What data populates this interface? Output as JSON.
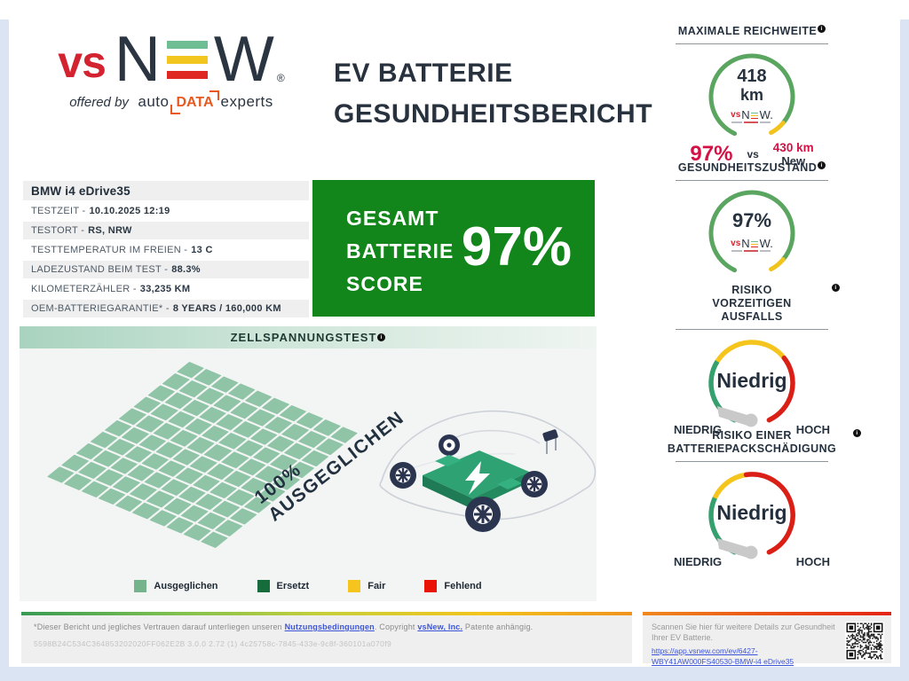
{
  "report": {
    "logo": {
      "vs": "vs",
      "n": "N",
      "w": "W",
      "reg": "®",
      "offered_by": "offered by",
      "auto": "auto",
      "data_word": "DATA",
      "experts": "experts",
      "mini_vs": "vs",
      "mini_n": "N",
      "mini_w": "W."
    },
    "title_line1": "EV BATTERIE",
    "title_line2": "GESUNDHEITSBERICHT"
  },
  "vehicle": {
    "name": "BMW i4 eDrive35",
    "rows": [
      {
        "label": "TESTZEIT -",
        "value": "10.10.2025 12:19"
      },
      {
        "label": "TESTORT -",
        "value": "RS, NRW"
      },
      {
        "label": "TESTTEMPERATUR IM FREIEN -",
        "value": "13 C"
      },
      {
        "label": "LADEZUSTAND BEIM TEST -",
        "value": "88.3%"
      },
      {
        "label": "KILOMETERZÄHLER -",
        "value": "33,235 KM"
      },
      {
        "label": "OEM-BATTERIEGARANTIE* -",
        "value": "8 YEARS / 160,000 KM"
      }
    ]
  },
  "score": {
    "line1": "GESAMT",
    "line2": "BATTERIE",
    "line3": "SCORE",
    "value": "97%"
  },
  "gauges": {
    "range": {
      "title": "MAXIMALE REICHWEITE",
      "value": "418",
      "unit": "km",
      "percent": "97%",
      "vs_label": "vs",
      "new_value": "430 km",
      "new_label": "New"
    },
    "health": {
      "title": "GESUNDHEITSZUSTAND",
      "value": "97%"
    },
    "failure_risk": {
      "title_line1": "RISIKO",
      "title_line2": "VORZEITIGEN",
      "title_line3": "AUSFALLS",
      "value": "Niedrig",
      "low_label": "NIEDRIG",
      "high_label": "HOCH"
    },
    "damage_risk": {
      "title_line1": "RISIKO EINER",
      "title_line2": "BATTERIEPACKSCHÄDIGUNG",
      "value": "Niedrig",
      "low_label": "NIEDRIG",
      "high_label": "HOCH"
    }
  },
  "cell_test": {
    "title": "ZELLSPANNUNGSTEST",
    "overlay_line1": "100%",
    "overlay_line2": "AUSGEGLICHEN",
    "cell_color": "#8fc4a7",
    "grid": {
      "rows": 10,
      "cols": 10
    },
    "legend": [
      {
        "label": "Ausgeglichen",
        "color": "#74b38c"
      },
      {
        "label": "Ersetzt",
        "color": "#166c3a"
      },
      {
        "label": "Fair",
        "color": "#f6c51d"
      },
      {
        "label": "Fehlend",
        "color": "#ea1107"
      }
    ]
  },
  "footer": {
    "disclaimer_prefix": "*Dieser Bericht und jegliches Vertrauen darauf unterliegen unseren",
    "terms_link": "Nutzungsbedingungen",
    "disclaimer_mid": ". Copyright",
    "company_link": "vsNew, Inc.",
    "disclaimer_suffix": "Patente anhängig.",
    "serial": "5598B24C534C364853202020FF062E2B 3.0.0 2.72 (1) 4c25758c-7845-433e-9c8f-360101a070f9",
    "scan_text": "Scannen Sie hier für weitere Details zur Gesundheit Ihrer EV Batterie.",
    "scan_link": "https://app.vsnew.com/ev/6427-WBY41AW000FS40530-BMW-i4 eDrive35"
  },
  "colors": {
    "score_green": "#12861b",
    "crimson": "#d31145",
    "navy": "#27323f",
    "gauge_green": "#5aa55f",
    "gauge_yellow": "#f1c41d",
    "risk_green": "#33a06e",
    "risk_yellow": "#f6c51d",
    "risk_red": "#da1f17"
  }
}
